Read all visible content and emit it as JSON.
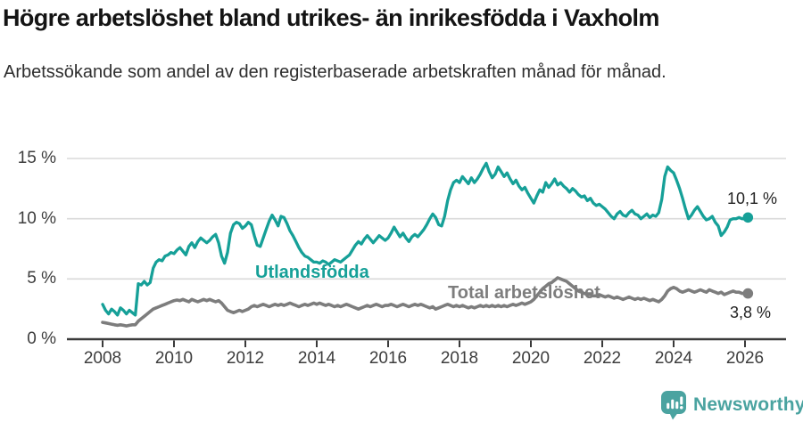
{
  "header": {
    "title": "Högre arbetslöshet bland utrikes- än inrikesfödda i Vaxholm",
    "subtitle": "Arbetssökande som andel av den registerbaserade arbetskraften månad för månad."
  },
  "chart_data": {
    "type": "line",
    "title": "Högre arbetslöshet bland utrikes- än inrikesfödda i Vaxholm",
    "subtitle": "Arbetssökande som andel av den registerbaserade arbetskraften månad för månad.",
    "x_start_year": 2008,
    "points_per_year": 12,
    "x_ticks": [
      2008,
      2010,
      2012,
      2014,
      2016,
      2018,
      2020,
      2022,
      2024,
      2026
    ],
    "y_ticks": [
      0,
      5,
      10,
      15
    ],
    "y_tick_suffix": " %",
    "ylim": [
      0,
      15.5
    ],
    "grid": "horizontal",
    "legend_position": "inline-labels",
    "series": [
      {
        "name": "Utlandsfödda",
        "color": "#16a098",
        "end_label": "10,1 %",
        "end_value": 10.1,
        "values": [
          2.9,
          2.4,
          2.1,
          2.5,
          2.3,
          2.0,
          2.6,
          2.4,
          2.1,
          2.4,
          2.2,
          2.0,
          4.6,
          4.5,
          4.8,
          4.5,
          4.7,
          5.9,
          6.4,
          6.6,
          6.5,
          6.9,
          7.0,
          7.2,
          7.1,
          7.4,
          7.6,
          7.3,
          7.0,
          7.7,
          8.0,
          7.6,
          8.1,
          8.4,
          8.2,
          8.0,
          8.2,
          8.5,
          8.7,
          8.0,
          6.9,
          6.3,
          7.2,
          8.8,
          9.5,
          9.7,
          9.6,
          9.2,
          9.4,
          9.7,
          9.5,
          8.6,
          7.8,
          7.7,
          8.4,
          9.1,
          9.8,
          10.3,
          9.9,
          9.4,
          10.2,
          10.1,
          9.6,
          9.0,
          8.6,
          8.1,
          7.6,
          7.2,
          6.9,
          6.8,
          6.6,
          6.4,
          6.4,
          6.3,
          6.5,
          6.4,
          6.2,
          6.4,
          6.6,
          6.5,
          6.4,
          6.6,
          6.8,
          7.0,
          7.4,
          7.8,
          8.1,
          7.9,
          8.3,
          8.6,
          8.3,
          8.0,
          8.3,
          8.6,
          8.4,
          8.2,
          8.4,
          8.8,
          9.3,
          8.9,
          8.5,
          8.8,
          8.4,
          8.1,
          8.5,
          8.7,
          8.5,
          8.8,
          9.1,
          9.5,
          10.0,
          10.4,
          10.1,
          9.5,
          9.4,
          10.2,
          11.5,
          12.4,
          13.0,
          13.2,
          13.0,
          13.5,
          13.2,
          12.9,
          13.4,
          13.0,
          13.3,
          13.7,
          14.2,
          14.6,
          13.9,
          13.4,
          13.7,
          14.3,
          13.9,
          13.5,
          13.8,
          13.3,
          12.9,
          13.2,
          12.7,
          12.4,
          12.6,
          12.1,
          11.7,
          11.3,
          11.9,
          12.4,
          12.2,
          13.0,
          12.6,
          12.9,
          13.3,
          12.8,
          13.0,
          12.7,
          12.5,
          12.2,
          12.5,
          12.3,
          12.0,
          11.8,
          11.9,
          11.5,
          11.7,
          11.3,
          11.1,
          11.2,
          11.0,
          10.8,
          10.5,
          10.2,
          10.0,
          10.4,
          10.6,
          10.3,
          10.2,
          10.5,
          10.7,
          10.4,
          10.3,
          10.0,
          10.2,
          10.4,
          10.1,
          10.3,
          10.2,
          10.5,
          11.6,
          13.5,
          14.3,
          14.0,
          13.8,
          13.2,
          12.5,
          11.7,
          10.8,
          10.0,
          10.3,
          10.7,
          11.0,
          10.6,
          10.2,
          9.9,
          10.0,
          10.2,
          9.7,
          9.4,
          8.6,
          8.9,
          9.3,
          9.9,
          10.0,
          10.0,
          10.1,
          10.0,
          10.0,
          10.1
        ]
      },
      {
        "name": "Total arbetslöshet",
        "color": "#7d7d7d",
        "end_label": "3,8 %",
        "end_value": 3.8,
        "values": [
          1.4,
          1.35,
          1.3,
          1.25,
          1.2,
          1.15,
          1.2,
          1.15,
          1.1,
          1.15,
          1.2,
          1.2,
          1.5,
          1.7,
          1.9,
          2.1,
          2.3,
          2.5,
          2.6,
          2.7,
          2.8,
          2.9,
          3.0,
          3.1,
          3.2,
          3.25,
          3.2,
          3.3,
          3.2,
          3.1,
          3.3,
          3.2,
          3.1,
          3.2,
          3.3,
          3.2,
          3.3,
          3.2,
          3.1,
          3.2,
          3.0,
          2.7,
          2.4,
          2.3,
          2.2,
          2.3,
          2.4,
          2.3,
          2.4,
          2.5,
          2.7,
          2.8,
          2.7,
          2.8,
          2.9,
          2.8,
          2.7,
          2.8,
          2.9,
          2.8,
          2.9,
          2.8,
          2.9,
          3.0,
          2.9,
          2.8,
          2.7,
          2.8,
          2.9,
          2.8,
          2.9,
          3.0,
          2.9,
          3.0,
          2.9,
          2.8,
          2.9,
          2.8,
          2.7,
          2.8,
          2.7,
          2.8,
          2.9,
          2.8,
          2.7,
          2.6,
          2.5,
          2.6,
          2.7,
          2.8,
          2.7,
          2.8,
          2.9,
          2.8,
          2.7,
          2.8,
          2.8,
          2.9,
          2.8,
          2.7,
          2.8,
          2.9,
          2.8,
          2.7,
          2.8,
          2.9,
          2.8,
          2.9,
          2.8,
          2.7,
          2.6,
          2.7,
          2.5,
          2.6,
          2.7,
          2.8,
          2.9,
          2.8,
          2.7,
          2.8,
          2.7,
          2.8,
          2.7,
          2.6,
          2.7,
          2.6,
          2.7,
          2.8,
          2.7,
          2.8,
          2.7,
          2.8,
          2.7,
          2.8,
          2.7,
          2.8,
          2.7,
          2.8,
          2.9,
          2.8,
          2.9,
          3.0,
          2.9,
          3.0,
          3.1,
          3.3,
          3.6,
          3.9,
          4.2,
          4.4,
          4.6,
          4.7,
          4.9,
          5.1,
          5.0,
          4.9,
          4.8,
          4.6,
          4.4,
          4.2,
          4.0,
          3.9,
          3.8,
          3.7,
          3.7,
          3.6,
          3.6,
          3.7,
          3.6,
          3.5,
          3.6,
          3.5,
          3.4,
          3.5,
          3.4,
          3.3,
          3.4,
          3.5,
          3.4,
          3.3,
          3.4,
          3.3,
          3.4,
          3.3,
          3.2,
          3.3,
          3.2,
          3.1,
          3.3,
          3.6,
          4.0,
          4.2,
          4.3,
          4.2,
          4.0,
          3.9,
          4.0,
          4.1,
          4.0,
          3.9,
          4.0,
          4.1,
          4.0,
          3.9,
          4.1,
          4.0,
          3.9,
          3.8,
          3.9,
          3.7,
          3.8,
          3.9,
          4.0,
          3.9,
          3.9,
          3.8,
          3.8,
          3.8
        ]
      }
    ]
  },
  "footer": {
    "brand_name": "Newsworthy",
    "brand_color": "#4aa3a0"
  }
}
